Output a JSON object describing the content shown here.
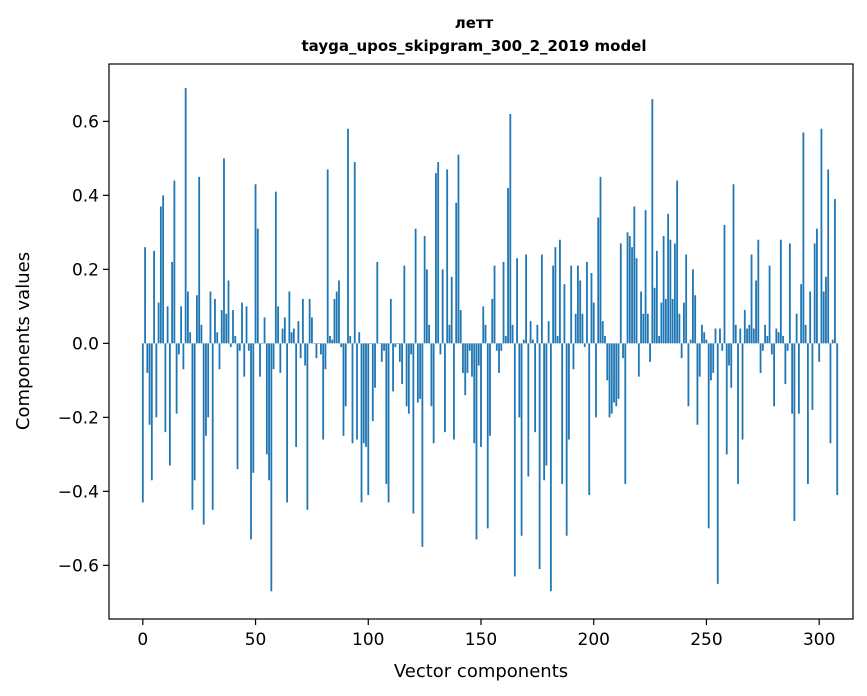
{
  "chart_data": {
    "type": "bar",
    "title_line1": "летт",
    "title_line2": "tayga_upos_skipgram_300_2_2019 model",
    "xlabel": "Vector components",
    "ylabel": "Components values",
    "xlim": [
      -15,
      315
    ],
    "ylim": [
      -0.745,
      0.755
    ],
    "xticks": [
      0,
      50,
      100,
      150,
      200,
      250,
      300
    ],
    "yticks": [
      -0.6,
      -0.4,
      -0.2,
      0.0,
      0.2,
      0.4,
      0.6
    ],
    "xtick_labels": [
      "0",
      "50",
      "100",
      "150",
      "200",
      "250",
      "300"
    ],
    "ytick_labels": [
      "−0.6",
      "−0.4",
      "−0.2",
      "0.0",
      "0.2",
      "0.4",
      "0.6"
    ],
    "bar_color": "#1f77b4",
    "values": [
      -0.43,
      0.26,
      -0.08,
      -0.22,
      -0.37,
      0.25,
      -0.2,
      0.11,
      0.37,
      0.4,
      -0.24,
      0.1,
      -0.33,
      0.22,
      0.44,
      -0.19,
      -0.03,
      0.1,
      -0.07,
      0.69,
      0.14,
      0.03,
      -0.45,
      -0.37,
      0.13,
      0.45,
      0.05,
      -0.49,
      -0.25,
      -0.2,
      0.14,
      -0.45,
      0.12,
      0.03,
      -0.07,
      0.09,
      0.5,
      0.08,
      0.17,
      -0.01,
      0.09,
      0.02,
      -0.34,
      -0.02,
      0.11,
      -0.09,
      0.1,
      -0.02,
      -0.53,
      -0.35,
      0.43,
      0.31,
      -0.09,
      0.0,
      0.07,
      -0.3,
      -0.37,
      -0.67,
      -0.07,
      0.41,
      0.1,
      -0.08,
      0.04,
      0.07,
      -0.43,
      0.14,
      0.03,
      0.04,
      -0.28,
      0.06,
      -0.04,
      0.12,
      -0.06,
      -0.45,
      0.12,
      0.07,
      0.0,
      -0.04,
      0.0,
      -0.03,
      -0.26,
      -0.07,
      0.47,
      0.02,
      0.01,
      0.12,
      0.14,
      0.17,
      -0.01,
      -0.25,
      -0.17,
      0.58,
      0.02,
      -0.27,
      0.49,
      -0.26,
      0.03,
      -0.43,
      -0.27,
      -0.28,
      -0.41,
      0.0,
      -0.21,
      -0.12,
      0.22,
      0.0,
      -0.05,
      -0.02,
      -0.38,
      -0.43,
      0.12,
      -0.13,
      -0.01,
      0.0,
      -0.05,
      -0.11,
      0.21,
      -0.17,
      -0.19,
      -0.03,
      -0.46,
      0.31,
      -0.16,
      -0.15,
      -0.55,
      0.29,
      0.2,
      0.05,
      -0.17,
      -0.27,
      0.46,
      0.49,
      -0.03,
      0.2,
      -0.24,
      0.47,
      0.05,
      0.18,
      -0.26,
      0.38,
      0.51,
      0.09,
      -0.08,
      -0.14,
      -0.08,
      -0.02,
      -0.09,
      -0.27,
      -0.53,
      -0.06,
      -0.28,
      0.1,
      0.05,
      -0.5,
      -0.25,
      0.12,
      0.21,
      -0.02,
      -0.08,
      -0.02,
      0.22,
      0.02,
      0.42,
      0.62,
      0.05,
      -0.63,
      0.23,
      -0.2,
      -0.52,
      0.01,
      0.24,
      -0.36,
      0.06,
      0.01,
      -0.24,
      0.05,
      -0.61,
      0.24,
      -0.37,
      -0.33,
      0.06,
      -0.67,
      0.21,
      0.26,
      0.02,
      0.28,
      -0.38,
      0.16,
      -0.52,
      -0.26,
      0.21,
      -0.07,
      0.08,
      0.21,
      0.17,
      0.08,
      -0.01,
      0.22,
      -0.41,
      0.19,
      0.11,
      -0.2,
      0.34,
      0.45,
      0.06,
      0.02,
      -0.1,
      -0.2,
      -0.19,
      -0.16,
      -0.17,
      -0.15,
      0.27,
      -0.04,
      -0.38,
      0.3,
      0.29,
      0.26,
      0.37,
      0.23,
      -0.09,
      0.14,
      0.08,
      0.36,
      0.08,
      -0.05,
      0.66,
      0.15,
      0.25,
      0.02,
      0.11,
      0.29,
      0.12,
      0.35,
      0.28,
      0.12,
      0.27,
      0.44,
      0.08,
      -0.04,
      0.11,
      0.24,
      -0.17,
      0.01,
      0.2,
      0.13,
      -0.22,
      -0.09,
      0.05,
      0.03,
      0.01,
      -0.5,
      -0.1,
      -0.08,
      0.04,
      -0.65,
      0.04,
      -0.02,
      0.32,
      -0.3,
      -0.06,
      -0.12,
      0.43,
      0.05,
      -0.38,
      0.04,
      -0.26,
      0.09,
      0.04,
      0.05,
      0.24,
      0.04,
      0.17,
      0.28,
      -0.08,
      -0.02,
      0.05,
      0.02,
      0.21,
      -0.03,
      -0.17,
      0.04,
      0.03,
      0.28,
      0.02,
      -0.11,
      -0.02,
      0.27,
      -0.19,
      -0.48,
      0.08,
      -0.19,
      0.16,
      0.57,
      0.05,
      -0.38,
      0.14,
      -0.18,
      0.27,
      0.31,
      -0.05,
      0.58,
      0.14,
      0.18,
      0.47,
      -0.27,
      0.01,
      0.39,
      -0.41
    ]
  }
}
